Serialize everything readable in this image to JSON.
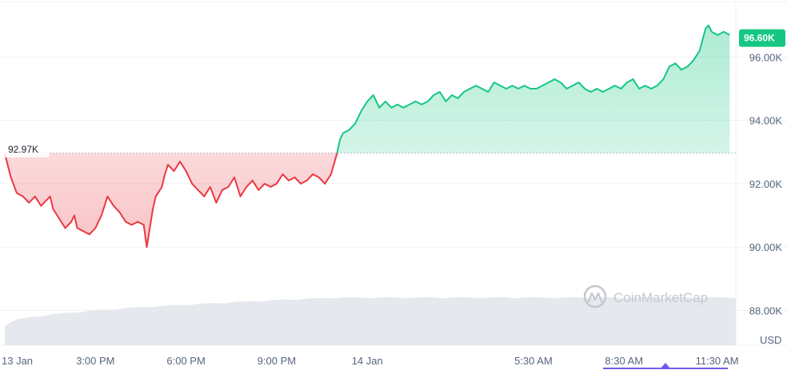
{
  "chart_data": {
    "type": "line",
    "unit": "USD",
    "open_value_label": "92.97K",
    "open_value": 92.97,
    "last_price_label": "96.60K",
    "last_price": 96.6,
    "colors": {
      "up": "#16c784",
      "down": "#ea3943",
      "volume": "#e5e8ed",
      "grid": "#eef0f4"
    },
    "grid": true,
    "y_axis": {
      "position": "right",
      "ylim": [
        86.9,
        97.6
      ],
      "ticks": [
        {
          "value": 88,
          "label": "88.00K"
        },
        {
          "value": 90,
          "label": "90.00K"
        },
        {
          "value": 92,
          "label": "92.00K"
        },
        {
          "value": 94,
          "label": "94.00K"
        },
        {
          "value": 96,
          "label": "96.00K"
        }
      ]
    },
    "x_axis": {
      "xlim": [
        0,
        24.2
      ],
      "ticks": [
        {
          "value": 0,
          "label": "13 Jan"
        },
        {
          "value": 3,
          "label": "3:00 PM"
        },
        {
          "value": 6,
          "label": "6:00 PM"
        },
        {
          "value": 9,
          "label": "9:00 PM"
        },
        {
          "value": 12,
          "label": "14 Jan"
        },
        {
          "value": 17.5,
          "label": "5:30 AM"
        },
        {
          "value": 20.5,
          "label": "8:30 AM"
        },
        {
          "value": 23.5,
          "label": "11:30 AM"
        }
      ]
    },
    "series": [
      {
        "points": [
          [
            0,
            92.95
          ],
          [
            0.2,
            92.2
          ],
          [
            0.4,
            91.7
          ],
          [
            0.6,
            91.6
          ],
          [
            0.8,
            91.4
          ],
          [
            1.0,
            91.6
          ],
          [
            1.2,
            91.3
          ],
          [
            1.4,
            91.5
          ],
          [
            1.5,
            91.6
          ],
          [
            1.6,
            91.2
          ],
          [
            1.8,
            90.9
          ],
          [
            2.0,
            90.6
          ],
          [
            2.2,
            90.8
          ],
          [
            2.3,
            91.0
          ],
          [
            2.4,
            90.6
          ],
          [
            2.6,
            90.5
          ],
          [
            2.8,
            90.4
          ],
          [
            3.0,
            90.6
          ],
          [
            3.2,
            91.0
          ],
          [
            3.4,
            91.6
          ],
          [
            3.6,
            91.3
          ],
          [
            3.8,
            91.1
          ],
          [
            4.0,
            90.8
          ],
          [
            4.2,
            90.7
          ],
          [
            4.4,
            90.8
          ],
          [
            4.6,
            90.7
          ],
          [
            4.7,
            90.0
          ],
          [
            4.8,
            90.6
          ],
          [
            4.9,
            91.2
          ],
          [
            5.0,
            91.6
          ],
          [
            5.2,
            91.9
          ],
          [
            5.3,
            92.3
          ],
          [
            5.4,
            92.6
          ],
          [
            5.6,
            92.4
          ],
          [
            5.8,
            92.7
          ],
          [
            6.0,
            92.4
          ],
          [
            6.2,
            92.0
          ],
          [
            6.4,
            91.8
          ],
          [
            6.6,
            91.6
          ],
          [
            6.8,
            91.9
          ],
          [
            7.0,
            91.4
          ],
          [
            7.2,
            91.8
          ],
          [
            7.4,
            91.9
          ],
          [
            7.6,
            92.2
          ],
          [
            7.8,
            91.6
          ],
          [
            8.0,
            91.9
          ],
          [
            8.2,
            92.1
          ],
          [
            8.4,
            91.8
          ],
          [
            8.6,
            92.0
          ],
          [
            8.8,
            91.9
          ],
          [
            9.0,
            92.0
          ],
          [
            9.2,
            92.3
          ],
          [
            9.4,
            92.1
          ],
          [
            9.6,
            92.2
          ],
          [
            9.8,
            92.0
          ],
          [
            10.0,
            92.1
          ],
          [
            10.2,
            92.3
          ],
          [
            10.4,
            92.2
          ],
          [
            10.6,
            92.0
          ],
          [
            10.8,
            92.3
          ],
          [
            11.0,
            92.97
          ],
          [
            11.1,
            93.4
          ],
          [
            11.2,
            93.6
          ],
          [
            11.4,
            93.7
          ],
          [
            11.6,
            93.9
          ],
          [
            11.8,
            94.3
          ],
          [
            12.0,
            94.6
          ],
          [
            12.2,
            94.8
          ],
          [
            12.4,
            94.4
          ],
          [
            12.6,
            94.6
          ],
          [
            12.8,
            94.4
          ],
          [
            13.0,
            94.5
          ],
          [
            13.2,
            94.4
          ],
          [
            13.4,
            94.5
          ],
          [
            13.6,
            94.6
          ],
          [
            13.8,
            94.5
          ],
          [
            14.0,
            94.6
          ],
          [
            14.2,
            94.8
          ],
          [
            14.4,
            94.9
          ],
          [
            14.6,
            94.6
          ],
          [
            14.8,
            94.8
          ],
          [
            15.0,
            94.7
          ],
          [
            15.2,
            94.9
          ],
          [
            15.4,
            95.0
          ],
          [
            15.6,
            95.1
          ],
          [
            15.8,
            95.0
          ],
          [
            16.0,
            94.9
          ],
          [
            16.2,
            95.2
          ],
          [
            16.4,
            95.1
          ],
          [
            16.6,
            95.0
          ],
          [
            16.8,
            95.1
          ],
          [
            17.0,
            95.0
          ],
          [
            17.2,
            95.1
          ],
          [
            17.4,
            95.0
          ],
          [
            17.6,
            95.0
          ],
          [
            17.8,
            95.1
          ],
          [
            18.0,
            95.2
          ],
          [
            18.2,
            95.3
          ],
          [
            18.4,
            95.2
          ],
          [
            18.6,
            95.0
          ],
          [
            18.8,
            95.1
          ],
          [
            19.0,
            95.2
          ],
          [
            19.2,
            95.0
          ],
          [
            19.4,
            94.9
          ],
          [
            19.6,
            95.0
          ],
          [
            19.8,
            94.9
          ],
          [
            20.0,
            95.0
          ],
          [
            20.2,
            95.1
          ],
          [
            20.4,
            95.0
          ],
          [
            20.6,
            95.2
          ],
          [
            20.8,
            95.3
          ],
          [
            21.0,
            95.0
          ],
          [
            21.2,
            95.1
          ],
          [
            21.4,
            95.0
          ],
          [
            21.6,
            95.1
          ],
          [
            21.8,
            95.3
          ],
          [
            22.0,
            95.7
          ],
          [
            22.2,
            95.8
          ],
          [
            22.4,
            95.6
          ],
          [
            22.6,
            95.7
          ],
          [
            22.8,
            95.9
          ],
          [
            23.0,
            96.2
          ],
          [
            23.2,
            96.9
          ],
          [
            23.3,
            97.0
          ],
          [
            23.4,
            96.8
          ],
          [
            23.6,
            96.7
          ],
          [
            23.8,
            96.8
          ],
          [
            24.0,
            96.7
          ]
        ]
      }
    ],
    "watermark": "CoinMarketCap"
  }
}
